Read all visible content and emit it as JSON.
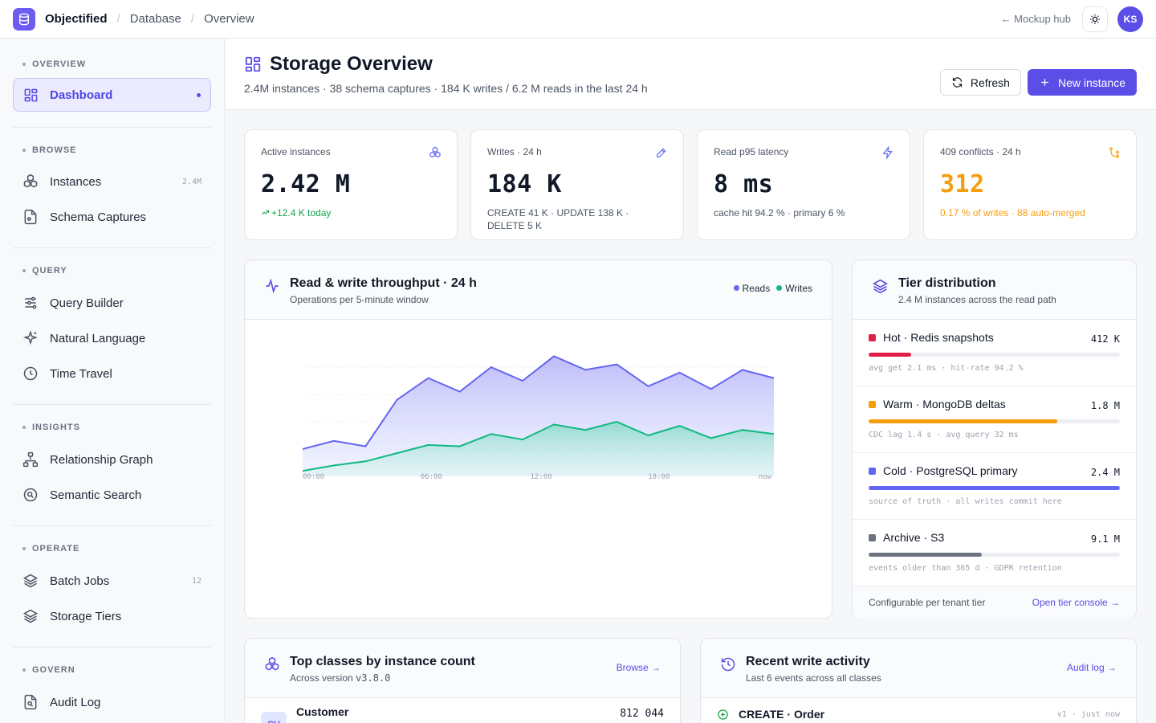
{
  "topbar": {
    "brand": "Objectified",
    "crumbs": [
      "Database",
      "Overview"
    ],
    "hub_link": "← Mockup hub",
    "avatar": "KS"
  },
  "sidebar": {
    "sections": [
      {
        "title": "OVERVIEW",
        "items": [
          {
            "label": "Dashboard",
            "icon": "grid-icon",
            "active": true
          }
        ]
      },
      {
        "title": "BROWSE",
        "items": [
          {
            "label": "Instances",
            "icon": "cubes-icon",
            "badge": "2.4M"
          },
          {
            "label": "Schema Captures",
            "icon": "file-icon"
          }
        ]
      },
      {
        "title": "QUERY",
        "items": [
          {
            "label": "Query Builder",
            "icon": "sliders-icon"
          },
          {
            "label": "Natural Language",
            "icon": "sparkle-icon"
          },
          {
            "label": "Time Travel",
            "icon": "history-icon"
          }
        ]
      },
      {
        "title": "INSIGHTS",
        "items": [
          {
            "label": "Relationship Graph",
            "icon": "graph-icon"
          },
          {
            "label": "Semantic Search",
            "icon": "search-icon"
          }
        ]
      },
      {
        "title": "OPERATE",
        "items": [
          {
            "label": "Batch Jobs",
            "icon": "layers-icon",
            "badge": "12"
          },
          {
            "label": "Storage Tiers",
            "icon": "layers-icon"
          }
        ]
      },
      {
        "title": "GOVERN",
        "items": [
          {
            "label": "Audit Log",
            "icon": "audit-icon"
          }
        ]
      }
    ]
  },
  "header": {
    "title": "Storage Overview",
    "subtitle": "2.4M instances · 38 schema captures · 184 K writes / 6.2 M reads in the last 24 h",
    "refresh_label": "Refresh",
    "new_label": "New instance"
  },
  "stats": [
    {
      "label": "Active instances",
      "value": "2.42 M",
      "sub": "+12.4 K today",
      "icon": "cubes-icon"
    },
    {
      "label": "Writes · 24 h",
      "value": "184 K",
      "sub": "CREATE 41 K · UPDATE 138 K · DELETE 5 K",
      "icon": "pencil-icon"
    },
    {
      "label": "Read p95 latency",
      "value": "8 ms",
      "sub": "cache hit 94.2 % · primary 6 %",
      "icon": "bolt-icon"
    },
    {
      "label": "409 conflicts · 24 h",
      "value": "312",
      "sub": "0.17 % of writes · 88 auto-merged",
      "icon": "merge-icon"
    }
  ],
  "colors": {
    "accent": "#5b4ee6",
    "green": "#16a34a",
    "amber": "#f59e0b",
    "reads": "#6366f1",
    "writes": "#10b981"
  },
  "throughput": {
    "title": "Read & write throughput · 24 h",
    "subtitle": "Operations per 5-minute window",
    "legend": [
      "Reads",
      "Writes"
    ]
  },
  "chart_data": {
    "type": "area",
    "title": "Read & write throughput · 24 h",
    "x_tick_labels": [
      "00:00",
      "06:00",
      "12:00",
      "18:00",
      "now"
    ],
    "x": [
      0,
      1,
      2,
      3,
      4,
      5,
      6,
      7,
      8,
      9,
      10,
      11,
      12,
      13,
      14,
      15
    ],
    "series": [
      {
        "name": "Reads",
        "values": [
          10,
          13,
          11,
          28,
          36,
          31,
          40,
          35,
          44,
          39,
          41,
          33,
          38,
          32,
          39,
          36
        ]
      },
      {
        "name": "Writes",
        "values": [
          2,
          4,
          5.5,
          8.5,
          11.5,
          11,
          15.5,
          13.5,
          19,
          17,
          20,
          15,
          18.5,
          14,
          17,
          15.5
        ]
      }
    ],
    "ylim": [
      0,
      50
    ],
    "grid": true
  },
  "tiers": {
    "title": "Tier distribution",
    "subtitle": "2.4 M instances across the read path",
    "items": [
      {
        "name": "Hot · Redis snapshots",
        "value": "412 K",
        "fill": 0.17,
        "color": "#e11d48",
        "note": "avg get 2.1 ms · hit-rate 94.2 %"
      },
      {
        "name": "Warm · MongoDB deltas",
        "value": "1.8 M",
        "fill": 0.75,
        "color": "#f59e0b",
        "note": "CDC lag 1.4 s · avg query 32 ms"
      },
      {
        "name": "Cold · PostgreSQL primary",
        "value": "2.4 M",
        "fill": 1.0,
        "color": "#6366f1",
        "note": "source of truth · all writes commit here"
      },
      {
        "name": "Archive · S3",
        "value": "9.1 M",
        "fill": 0.45,
        "color": "#6b7280",
        "note": "events older than 365 d · GDPR retention"
      }
    ],
    "footer": "Configurable per tenant tier",
    "footer_link": "Open tier console →"
  },
  "top_classes": {
    "title": "Top classes by instance count",
    "subtitle": "Across version v3.8.0",
    "link": "Browse →",
    "rows": [
      {
        "initials": "CU",
        "name": "Customer",
        "count": "812 044"
      }
    ]
  },
  "recent": {
    "title": "Recent write activity",
    "subtitle": "Last 6 events across all classes",
    "link": "Audit log →",
    "rows": [
      {
        "event": "CREATE · Order",
        "meta": "v1 · just now"
      }
    ]
  }
}
